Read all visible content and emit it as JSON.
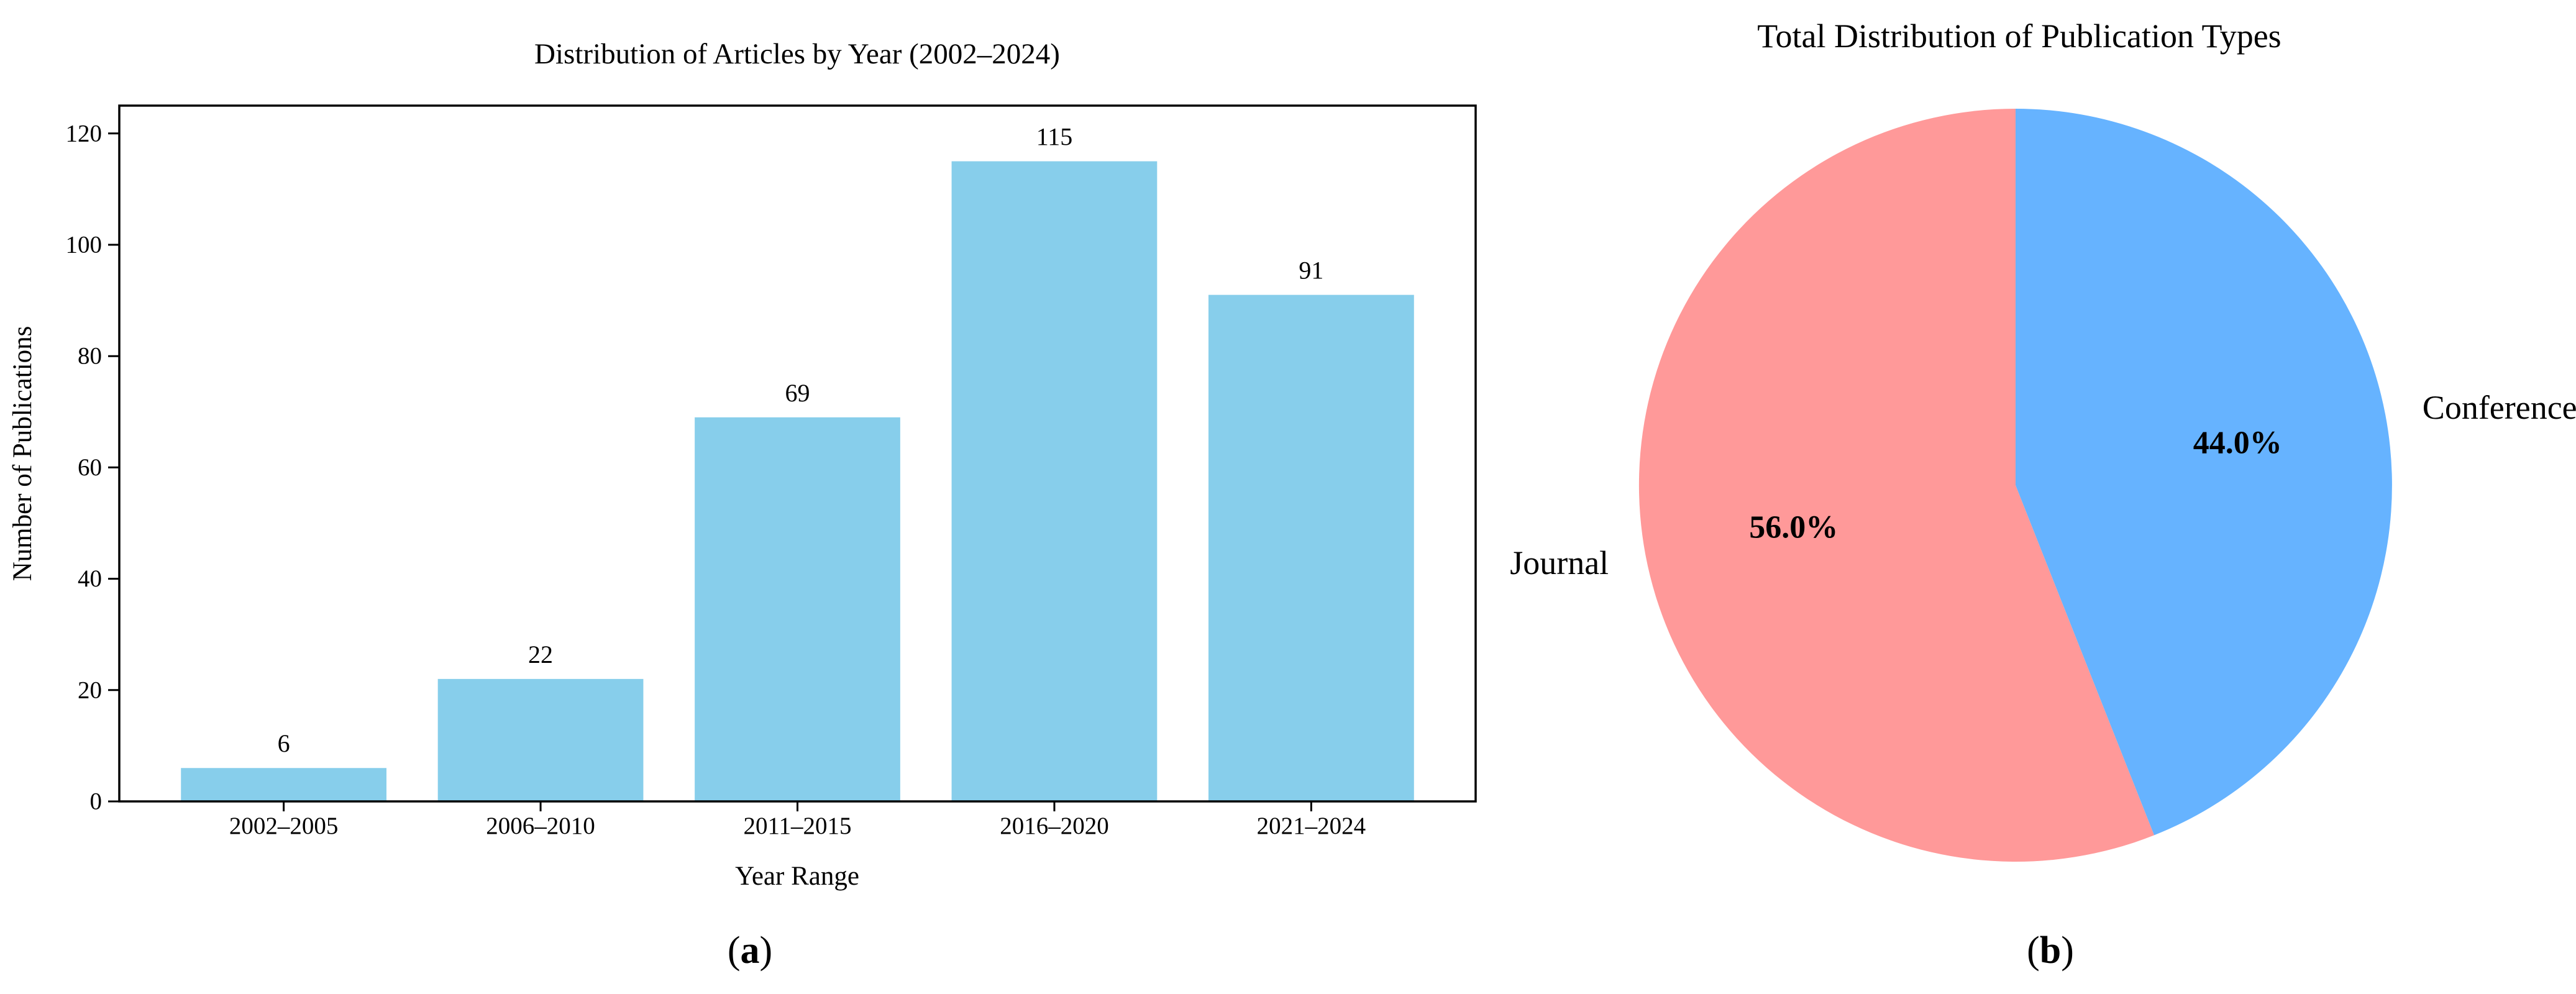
{
  "figure": {
    "background": "#ffffff",
    "captions": {
      "open": "(",
      "close": ")",
      "a_letter": "a",
      "b_letter": "b"
    }
  },
  "chart_data": [
    {
      "type": "bar",
      "panel": "a",
      "title": "Distribution of Articles by Year (2002–2024)",
      "xlabel": "Year Range",
      "ylabel": "Number of Publications",
      "categories": [
        "2002–2005",
        "2006–2010",
        "2011–2015",
        "2016–2020",
        "2021–2024"
      ],
      "values": [
        6,
        22,
        69,
        115,
        91
      ],
      "value_labels": [
        "6",
        "22",
        "69",
        "115",
        "91"
      ],
      "bar_color": "#87CEEB",
      "ylim": [
        0,
        125
      ],
      "yticks": [
        0,
        20,
        40,
        60,
        80,
        100,
        120
      ],
      "grid": false,
      "legend": "none",
      "spine_color": "#000000"
    },
    {
      "type": "pie",
      "panel": "b",
      "title": "Total Distribution of Publication Types",
      "slices": [
        {
          "label": "Journal",
          "value": 56.0,
          "pct_label": "56.0%",
          "color": "#FF9999"
        },
        {
          "label": "Conference",
          "value": 44.0,
          "pct_label": "44.0%",
          "color": "#66B3FF"
        }
      ],
      "start_angle": 90,
      "counterclock": true,
      "legend": "none"
    }
  ]
}
